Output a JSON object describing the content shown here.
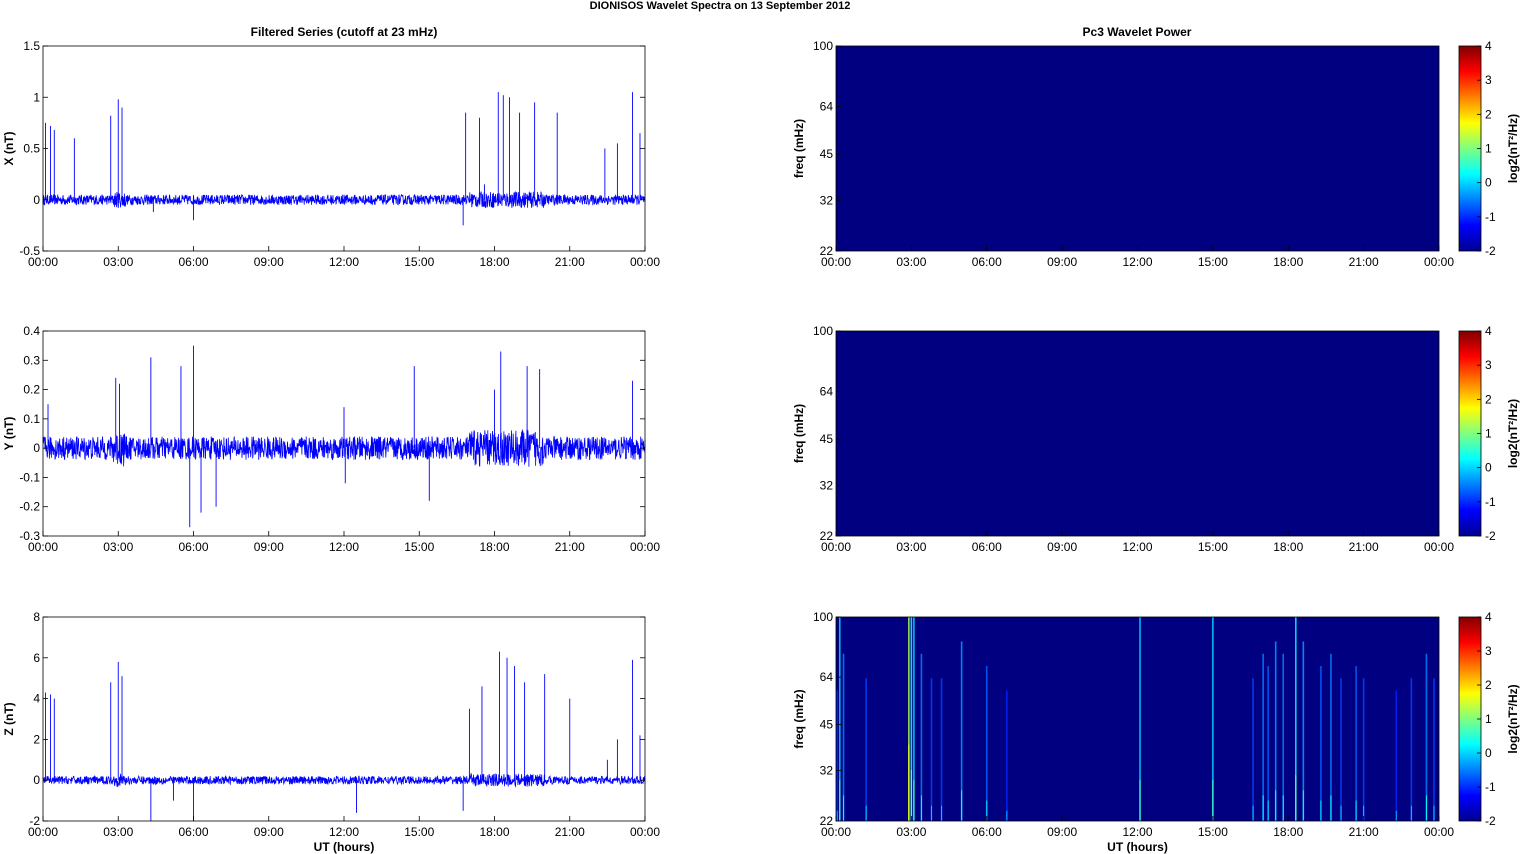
{
  "figure": {
    "title": "DIONISOS Wavelet Spectra on 13 September 2012",
    "left_title": "Filtered Series (cutoff at 23 mHz)",
    "right_title": "Pc3 Wavelet Power"
  },
  "time_ticks": [
    "00:00",
    "03:00",
    "06:00",
    "09:00",
    "12:00",
    "15:00",
    "18:00",
    "21:00",
    "00:00"
  ],
  "colors": {
    "trace": "#0000ff",
    "spectrogram_bg": "#00008f"
  },
  "chart_data": [
    {
      "type": "line",
      "panel": "X",
      "ylabel": "X (nT)",
      "xlabel": "",
      "x_unit": "UT hours",
      "xlim": [
        0,
        24
      ],
      "ylim": [
        -0.5,
        1.5
      ],
      "yticks": [
        "-0.5",
        "0",
        "0.5",
        "1",
        "1.5"
      ],
      "noise_amplitude": 0.05,
      "spikes": [
        [
          0.1,
          0.75
        ],
        [
          0.3,
          0.72
        ],
        [
          0.45,
          0.68
        ],
        [
          1.25,
          0.6
        ],
        [
          2.7,
          0.82
        ],
        [
          3.0,
          0.98
        ],
        [
          3.15,
          0.9
        ],
        [
          4.4,
          -0.12
        ],
        [
          6.0,
          -0.2
        ],
        [
          12.0,
          0.05
        ],
        [
          16.75,
          -0.25
        ],
        [
          16.85,
          0.85
        ],
        [
          17.4,
          0.8
        ],
        [
          17.6,
          0.15
        ],
        [
          18.15,
          1.05
        ],
        [
          18.35,
          1.02
        ],
        [
          18.6,
          1.0
        ],
        [
          19.0,
          0.85
        ],
        [
          19.6,
          0.95
        ],
        [
          20.5,
          0.85
        ],
        [
          22.4,
          0.5
        ],
        [
          22.9,
          0.55
        ],
        [
          23.5,
          1.05
        ],
        [
          23.8,
          0.65
        ]
      ]
    },
    {
      "type": "line",
      "panel": "Y",
      "ylabel": "Y (nT)",
      "xlabel": "",
      "x_unit": "UT hours",
      "xlim": [
        0,
        24
      ],
      "ylim": [
        -0.3,
        0.4
      ],
      "yticks": [
        "-0.3",
        "-0.2",
        "-0.1",
        "0",
        "0.1",
        "0.2",
        "0.3",
        "0.4"
      ],
      "noise_amplitude": 0.04,
      "spikes": [
        [
          0.2,
          0.15
        ],
        [
          2.9,
          0.24
        ],
        [
          3.05,
          0.22
        ],
        [
          4.3,
          0.31
        ],
        [
          5.5,
          0.28
        ],
        [
          5.85,
          -0.27
        ],
        [
          6.0,
          0.35
        ],
        [
          6.3,
          -0.22
        ],
        [
          6.9,
          -0.2
        ],
        [
          12.0,
          0.14
        ],
        [
          12.05,
          -0.12
        ],
        [
          14.8,
          0.28
        ],
        [
          15.4,
          -0.18
        ],
        [
          18.0,
          0.2
        ],
        [
          18.25,
          0.33
        ],
        [
          19.3,
          0.28
        ],
        [
          19.8,
          0.27
        ],
        [
          23.5,
          0.23
        ]
      ]
    },
    {
      "type": "line",
      "panel": "Z",
      "ylabel": "Z (nT)",
      "xlabel": "UT hours",
      "x_unit": "UT hours",
      "xlim": [
        0,
        24
      ],
      "ylim": [
        -2,
        8
      ],
      "yticks": [
        "-2",
        "0",
        "2",
        "4",
        "6",
        "8"
      ],
      "noise_amplitude": 0.2,
      "spikes": [
        [
          0.1,
          4.3
        ],
        [
          0.3,
          4.2
        ],
        [
          0.45,
          4.0
        ],
        [
          2.7,
          4.8
        ],
        [
          3.0,
          5.8
        ],
        [
          3.15,
          5.1
        ],
        [
          4.3,
          -2.0
        ],
        [
          5.2,
          -1.0
        ],
        [
          6.0,
          -2.0
        ],
        [
          12.5,
          -1.6
        ],
        [
          16.75,
          -1.5
        ],
        [
          17.0,
          3.5
        ],
        [
          17.5,
          4.6
        ],
        [
          18.2,
          6.3
        ],
        [
          18.5,
          6.0
        ],
        [
          18.8,
          5.6
        ],
        [
          19.2,
          4.8
        ],
        [
          20.0,
          5.2
        ],
        [
          21.0,
          4.0
        ],
        [
          22.5,
          1.0
        ],
        [
          22.9,
          2.0
        ],
        [
          23.5,
          5.9
        ],
        [
          23.8,
          2.2
        ]
      ]
    },
    {
      "type": "heatmap",
      "panel": "X",
      "ylabel": "freq (mHz)",
      "xlabel": "",
      "x_unit": "UT hours",
      "xlim": [
        0,
        24
      ],
      "ylim": [
        22,
        100
      ],
      "y_scale": "log",
      "yticks": [
        "22",
        "32",
        "45",
        "64",
        "100"
      ],
      "colorbar": {
        "label": "log2(nT²/Hz)",
        "range": [
          -2,
          4
        ],
        "ticks": [
          "-2",
          "-1",
          "0",
          "1",
          "2",
          "3",
          "4"
        ]
      },
      "background_value": -2,
      "streaks": []
    },
    {
      "type": "heatmap",
      "panel": "Y",
      "ylabel": "freq (mHz)",
      "xlabel": "",
      "x_unit": "UT hours",
      "xlim": [
        0,
        24
      ],
      "ylim": [
        22,
        100
      ],
      "y_scale": "log",
      "yticks": [
        "22",
        "32",
        "45",
        "64",
        "100"
      ],
      "colorbar": {
        "label": "log2(nT²/Hz)",
        "range": [
          -2,
          4
        ],
        "ticks": [
          "-2",
          "-1",
          "0",
          "1",
          "2",
          "3",
          "4"
        ]
      },
      "background_value": -2,
      "streaks": []
    },
    {
      "type": "heatmap",
      "panel": "Z",
      "ylabel": "freq (mHz)",
      "xlabel": "UT hours",
      "x_unit": "UT hours",
      "xlim": [
        0,
        24
      ],
      "ylim": [
        22,
        100
      ],
      "y_scale": "log",
      "yticks": [
        "22",
        "32",
        "45",
        "64",
        "100"
      ],
      "colorbar": {
        "label": "log2(nT²/Hz)",
        "range": [
          -2,
          4
        ],
        "ticks": [
          "-2",
          "-1",
          "0",
          "1",
          "2",
          "3",
          "4"
        ]
      },
      "background_value": -2,
      "streaks": [
        [
          0.05,
          0.2
        ],
        [
          0.15,
          0.8
        ],
        [
          0.3,
          0.5
        ],
        [
          1.2,
          0.3
        ],
        [
          2.9,
          1.5
        ],
        [
          3.0,
          1.0
        ],
        [
          3.1,
          0.8
        ],
        [
          3.4,
          0.5
        ],
        [
          3.8,
          0.3
        ],
        [
          4.2,
          0.3
        ],
        [
          5.0,
          0.6
        ],
        [
          6.0,
          0.4
        ],
        [
          6.8,
          0.2
        ],
        [
          12.1,
          0.8
        ],
        [
          15.0,
          0.8
        ],
        [
          16.6,
          0.3
        ],
        [
          17.0,
          0.5
        ],
        [
          17.2,
          0.4
        ],
        [
          17.5,
          0.6
        ],
        [
          17.8,
          0.5
        ],
        [
          18.3,
          0.9
        ],
        [
          18.6,
          0.6
        ],
        [
          19.3,
          0.4
        ],
        [
          19.7,
          0.5
        ],
        [
          20.1,
          0.3
        ],
        [
          20.7,
          0.4
        ],
        [
          21.0,
          0.3
        ],
        [
          22.3,
          0.2
        ],
        [
          22.9,
          0.3
        ],
        [
          23.5,
          0.5
        ],
        [
          23.8,
          0.3
        ]
      ]
    }
  ]
}
